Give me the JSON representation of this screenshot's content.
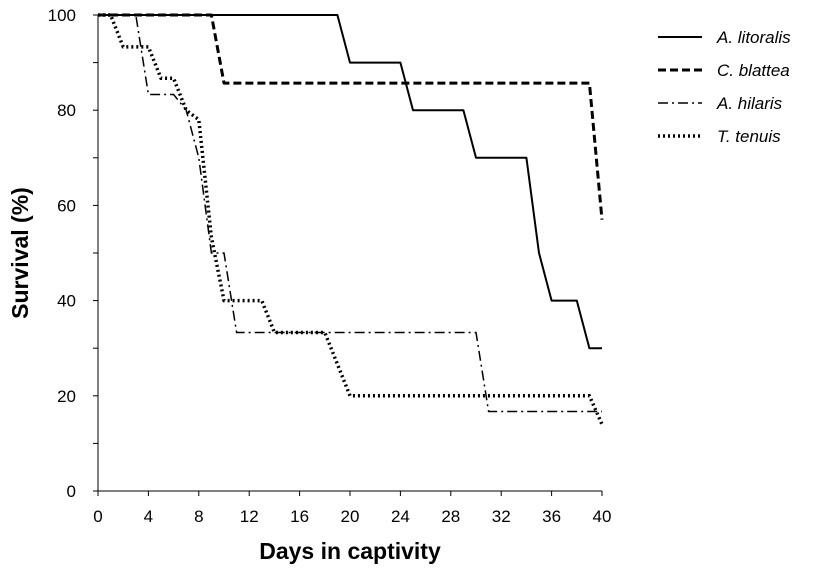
{
  "chart_data": {
    "type": "line",
    "xlabel": "Days in captivity",
    "ylabel": "Survival (%)",
    "xlim": [
      0,
      40
    ],
    "ylim": [
      0,
      100
    ],
    "xticks": [
      0,
      4,
      8,
      12,
      16,
      20,
      24,
      28,
      32,
      36,
      40
    ],
    "yticks": [
      0,
      20,
      40,
      60,
      80,
      100
    ],
    "grid": false,
    "legend_position": "top-right",
    "series": [
      {
        "name": "A. litoralis",
        "style": "solid",
        "color": "#000000",
        "x": [
          0,
          19,
          20,
          24,
          25,
          29,
          30,
          34,
          35,
          36,
          38,
          39,
          40
        ],
        "y": [
          100,
          100,
          90,
          90,
          80,
          80,
          70,
          70,
          50,
          40,
          40,
          30,
          30
        ]
      },
      {
        "name": "C. blattea",
        "style": "dashed",
        "color": "#000000",
        "x": [
          0,
          9,
          10,
          39,
          40
        ],
        "y": [
          100,
          100,
          85.7,
          85.7,
          57
        ]
      },
      {
        "name": "A. hilaris",
        "style": "dashdot",
        "color": "#000000",
        "x": [
          0,
          3,
          4,
          5,
          6,
          7,
          8,
          9,
          10,
          11,
          30,
          31,
          39,
          40
        ],
        "y": [
          100,
          100,
          83.3,
          83.3,
          83.3,
          80,
          70,
          50,
          50,
          33.3,
          33.3,
          16.7,
          16.7,
          16.7
        ]
      },
      {
        "name": "T. tenuis",
        "style": "dotted",
        "color": "#000000",
        "x": [
          0,
          1,
          2,
          3,
          4,
          5,
          6,
          7,
          8,
          9,
          10,
          11,
          13,
          14,
          18,
          20,
          39,
          40
        ],
        "y": [
          100,
          100,
          93.3,
          93.3,
          93.3,
          86.7,
          86.7,
          80,
          78,
          53.3,
          40,
          40,
          40,
          33.3,
          33.3,
          20,
          20,
          14
        ]
      }
    ]
  }
}
